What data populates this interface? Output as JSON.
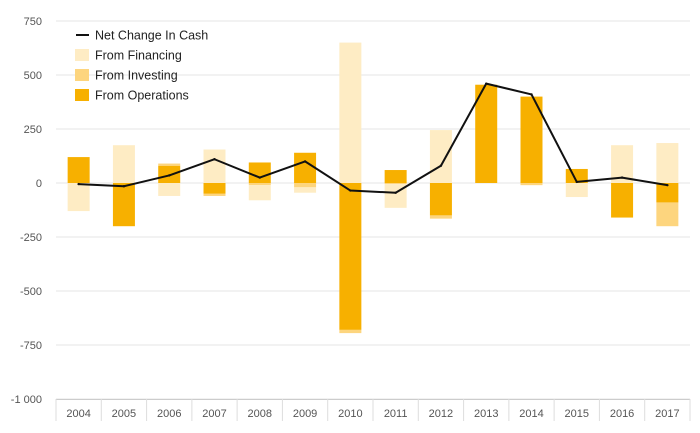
{
  "chart_data": {
    "type": "bar",
    "subtype": "stacked-bar-with-line",
    "categories": [
      "2004",
      "2005",
      "2006",
      "2007",
      "2008",
      "2009",
      "2010",
      "2011",
      "2012",
      "2013",
      "2014",
      "2015",
      "2016",
      "2017"
    ],
    "ylim": [
      -1000,
      750
    ],
    "yticks": [
      750,
      500,
      250,
      0,
      -250,
      -500,
      -750,
      -1000
    ],
    "ytick_labels": [
      "750",
      "500",
      "250",
      "0",
      "-250",
      "-500",
      "-750",
      "-1 000"
    ],
    "grid": true,
    "legend_position": "top-left",
    "series": [
      {
        "name": "From Operations",
        "kind": "bar",
        "color": "#f7b000",
        "values": [
          120,
          -200,
          80,
          -50,
          95,
          140,
          -680,
          60,
          -150,
          455,
          400,
          65,
          -160,
          -90
        ]
      },
      {
        "name": "From Investing",
        "kind": "bar",
        "color": "#fdd57e",
        "values": [
          0,
          0,
          10,
          -10,
          -10,
          -20,
          -15,
          -5,
          -15,
          0,
          -10,
          0,
          0,
          -110
        ]
      },
      {
        "name": "From Financing",
        "kind": "bar",
        "color": "#feecc4",
        "values": [
          -130,
          175,
          -60,
          155,
          -70,
          -25,
          650,
          -110,
          245,
          0,
          0,
          -65,
          175,
          185
        ]
      },
      {
        "name": "Net Change In Cash",
        "kind": "line",
        "color": "#111111",
        "values": [
          -5,
          -15,
          35,
          110,
          25,
          100,
          -35,
          -45,
          80,
          460,
          410,
          5,
          25,
          -10
        ]
      }
    ],
    "legend_order": [
      "Net Change In Cash",
      "From Financing",
      "From Investing",
      "From Operations"
    ]
  }
}
